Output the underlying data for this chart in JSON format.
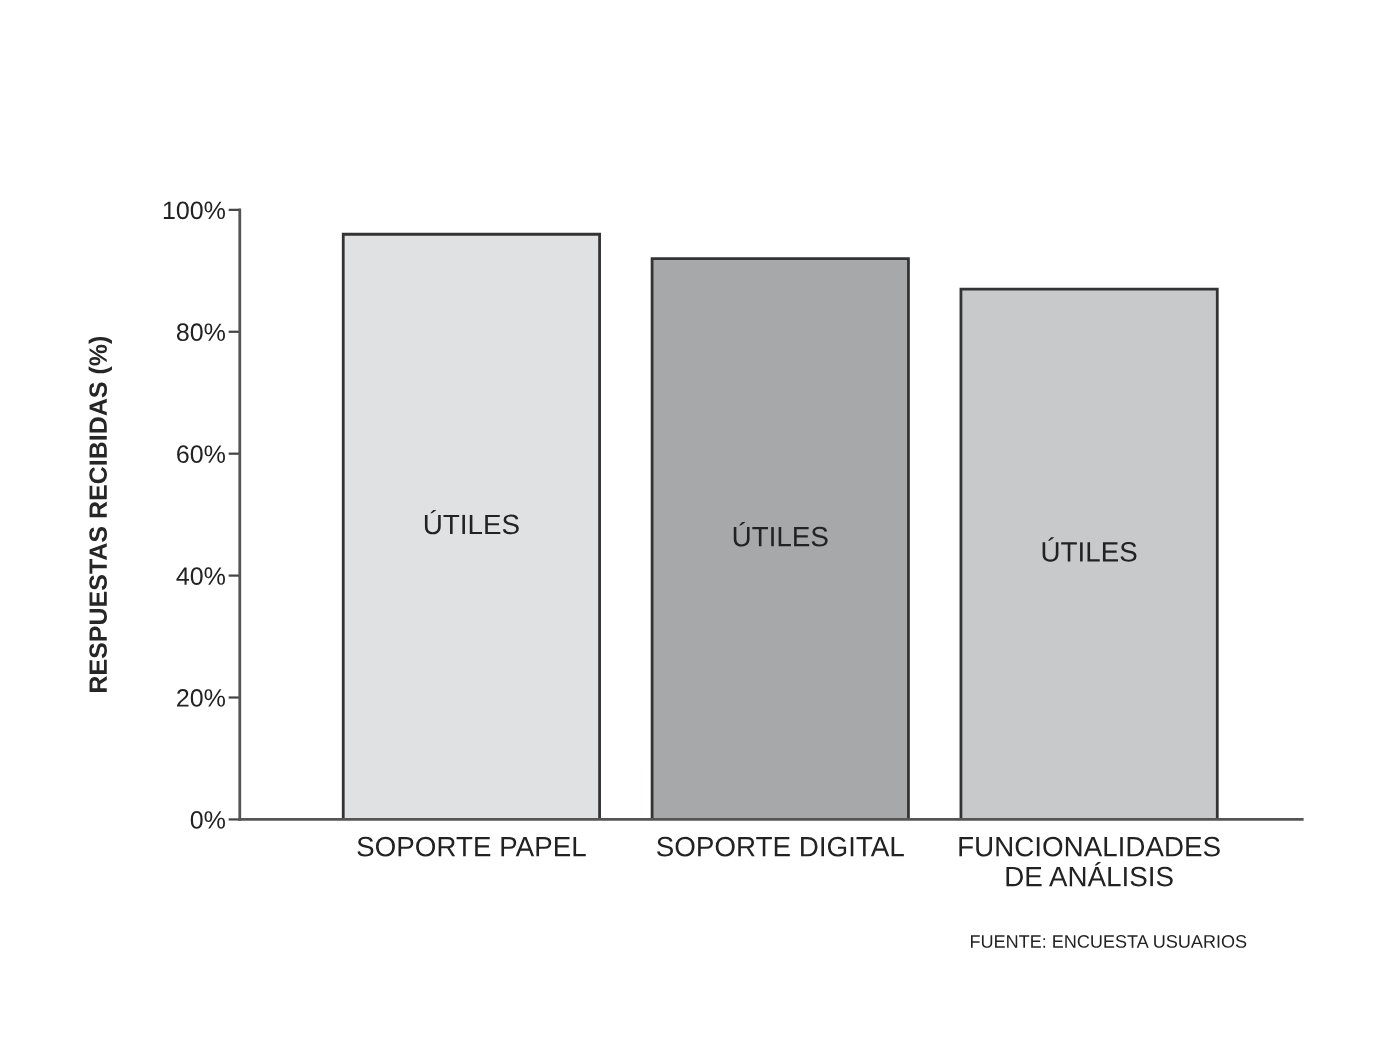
{
  "chart_data": {
    "type": "bar",
    "ylabel": "RESPUESTAS RECIBIDAS (%)",
    "categories": [
      "SOPORTE PAPEL",
      "SOPORTE DIGITAL",
      "FUNCIONALIDADES\nDE ANÁLISIS"
    ],
    "values": [
      96,
      92,
      87
    ],
    "colors": [
      "#e0e1e3",
      "#a7a8aa",
      "#c8c9cb"
    ],
    "ylim": [
      0,
      100
    ],
    "yticks": [
      {
        "value": 0,
        "label": "0%"
      },
      {
        "value": 20,
        "label": "20%"
      },
      {
        "value": 40,
        "label": "40%"
      },
      {
        "value": 60,
        "label": "60%"
      },
      {
        "value": 80,
        "label": "80%"
      },
      {
        "value": 100,
        "label": "100%"
      }
    ],
    "grid": false,
    "legend": false,
    "value_labels": [
      "ÚTILES",
      "ÚTILES",
      "ÚTILES"
    ],
    "annotations": [
      "FUENTE: ENCUESTA USUARIOS"
    ]
  }
}
